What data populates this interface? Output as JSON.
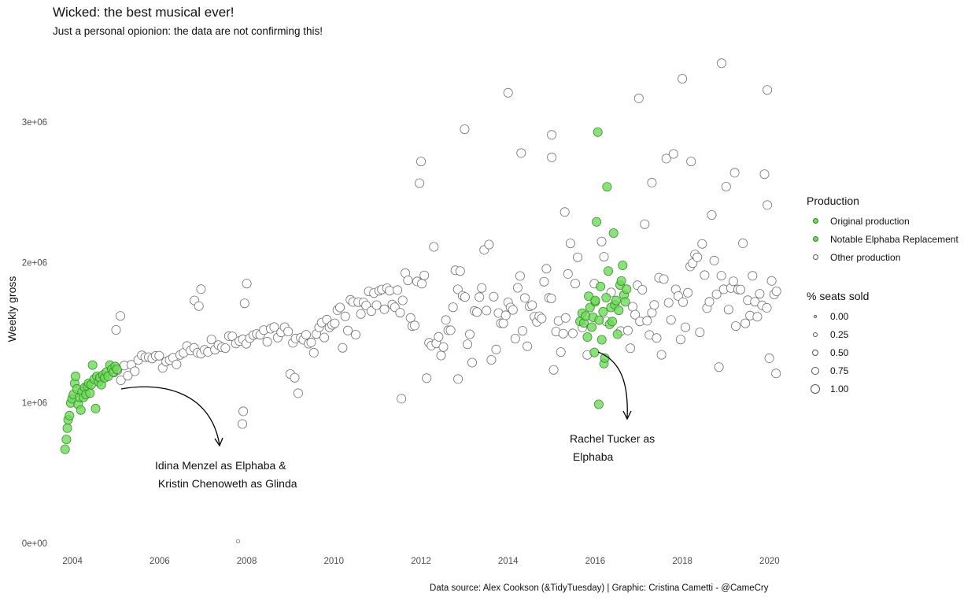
{
  "title": "Wicked: the best musical ever!",
  "subtitle": "Just a personal opionion: the data are not confirming this!",
  "caption": "Data source: Alex Cookson (&TidyTuesday) | Graphic: Cristina Cametti - @CameCry",
  "annotations": {
    "first": "Idina Menzel as Elphaba &\n Kristin Chenoweth as Glinda",
    "second": "Rachel Tucker as\n Elphaba"
  },
  "legend": {
    "production_title": "Production",
    "production_items": [
      {
        "label": "Original production",
        "color": "#6edb5a"
      },
      {
        "label": "Notable Elphaba Replacement",
        "color": "#6edb5a"
      },
      {
        "label": "Other production",
        "color": "#ffffff"
      }
    ],
    "size_title": "% seats sold",
    "size_items": [
      {
        "label": "0.00",
        "value": 0.0
      },
      {
        "label": "0.25",
        "value": 0.25
      },
      {
        "label": "0.50",
        "value": 0.5
      },
      {
        "label": "0.75",
        "value": 0.75
      },
      {
        "label": "1.00",
        "value": 1.0
      }
    ]
  },
  "colors": {
    "original": "#6edb5a",
    "replacement": "#6edb5a",
    "other": "#ffffff",
    "stroke": "#555555"
  },
  "chart_data": {
    "type": "scatter",
    "xlabel": "",
    "ylabel": "Weekly gross",
    "xlim": [
      2003.6,
      2020.4
    ],
    "ylim": [
      0,
      3450000
    ],
    "x_ticks": [
      2004,
      2006,
      2008,
      2010,
      2012,
      2014,
      2016,
      2018,
      2020
    ],
    "x_tick_labels": [
      "2004",
      "2006",
      "2008",
      "2010",
      "2012",
      "2014",
      "2016",
      "2018",
      "2020"
    ],
    "y_ticks": [
      0,
      1000000,
      2000000,
      3000000
    ],
    "y_tick_labels": [
      "0e+00",
      "1e+06",
      "2e+06",
      "3e+06"
    ],
    "grid": false,
    "legend_position": "right",
    "size_variable": "% seats sold",
    "series": [
      {
        "group": "Original production",
        "points": [
          [
            2003.83,
            670000
          ],
          [
            2003.86,
            740000
          ],
          [
            2003.88,
            820000
          ],
          [
            2003.9,
            880000
          ],
          [
            2003.93,
            910000
          ],
          [
            2003.96,
            1000000
          ],
          [
            2003.99,
            1030000
          ],
          [
            2004.02,
            1060000
          ],
          [
            2004.05,
            1140000
          ],
          [
            2004.07,
            1190000
          ],
          [
            2004.1,
            1100000
          ],
          [
            2004.13,
            990000
          ],
          [
            2004.16,
            1040000
          ],
          [
            2004.19,
            950000
          ],
          [
            2004.22,
            1080000
          ],
          [
            2004.25,
            1040000
          ],
          [
            2004.28,
            1110000
          ],
          [
            2004.31,
            1060000
          ],
          [
            2004.34,
            1120000
          ],
          [
            2004.37,
            1140000
          ],
          [
            2004.4,
            1070000
          ],
          [
            2004.43,
            1130000
          ],
          [
            2004.46,
            1270000
          ],
          [
            2004.5,
            1170000
          ],
          [
            2004.53,
            960000
          ],
          [
            2004.56,
            1190000
          ],
          [
            2004.6,
            1150000
          ],
          [
            2004.63,
            1180000
          ],
          [
            2004.66,
            1130000
          ],
          [
            2004.7,
            1200000
          ],
          [
            2004.74,
            1180000
          ],
          [
            2004.78,
            1220000
          ],
          [
            2004.82,
            1190000
          ],
          [
            2004.86,
            1270000
          ],
          [
            2004.9,
            1240000
          ],
          [
            2004.94,
            1220000
          ],
          [
            2004.98,
            1260000
          ],
          [
            2005.02,
            1240000
          ]
        ]
      },
      {
        "group": "Notable Elphaba Replacement",
        "points": [
          [
            2015.65,
            1580000
          ],
          [
            2015.7,
            1640000
          ],
          [
            2015.74,
            1570000
          ],
          [
            2015.78,
            1620000
          ],
          [
            2015.82,
            1470000
          ],
          [
            2015.85,
            1760000
          ],
          [
            2015.88,
            1680000
          ],
          [
            2015.92,
            1540000
          ],
          [
            2015.95,
            1610000
          ],
          [
            2015.98,
            1360000
          ],
          [
            2016.0,
            1720000
          ],
          [
            2016.03,
            2290000
          ],
          [
            2016.06,
            2930000
          ],
          [
            2016.09,
            1590000
          ],
          [
            2016.12,
            1830000
          ],
          [
            2016.15,
            1450000
          ],
          [
            2016.18,
            1650000
          ],
          [
            2016.2,
            1280000
          ],
          [
            2016.22,
            1320000
          ],
          [
            2016.25,
            1750000
          ],
          [
            2016.27,
            2540000
          ],
          [
            2016.3,
            1940000
          ],
          [
            2016.33,
            1560000
          ],
          [
            2016.36,
            1680000
          ],
          [
            2016.39,
            1580000
          ],
          [
            2016.42,
            2210000
          ],
          [
            2016.45,
            1700000
          ],
          [
            2016.48,
            1730000
          ],
          [
            2016.51,
            1490000
          ],
          [
            2016.54,
            1660000
          ],
          [
            2016.57,
            1840000
          ],
          [
            2016.6,
            1870000
          ],
          [
            2016.63,
            1980000
          ],
          [
            2016.66,
            1770000
          ],
          [
            2016.69,
            1720000
          ],
          [
            2016.72,
            1810000
          ],
          [
            2016.08,
            990000
          ],
          [
            2016.0,
            1730000
          ]
        ]
      },
      {
        "group": "Other production",
        "points": []
      }
    ]
  }
}
